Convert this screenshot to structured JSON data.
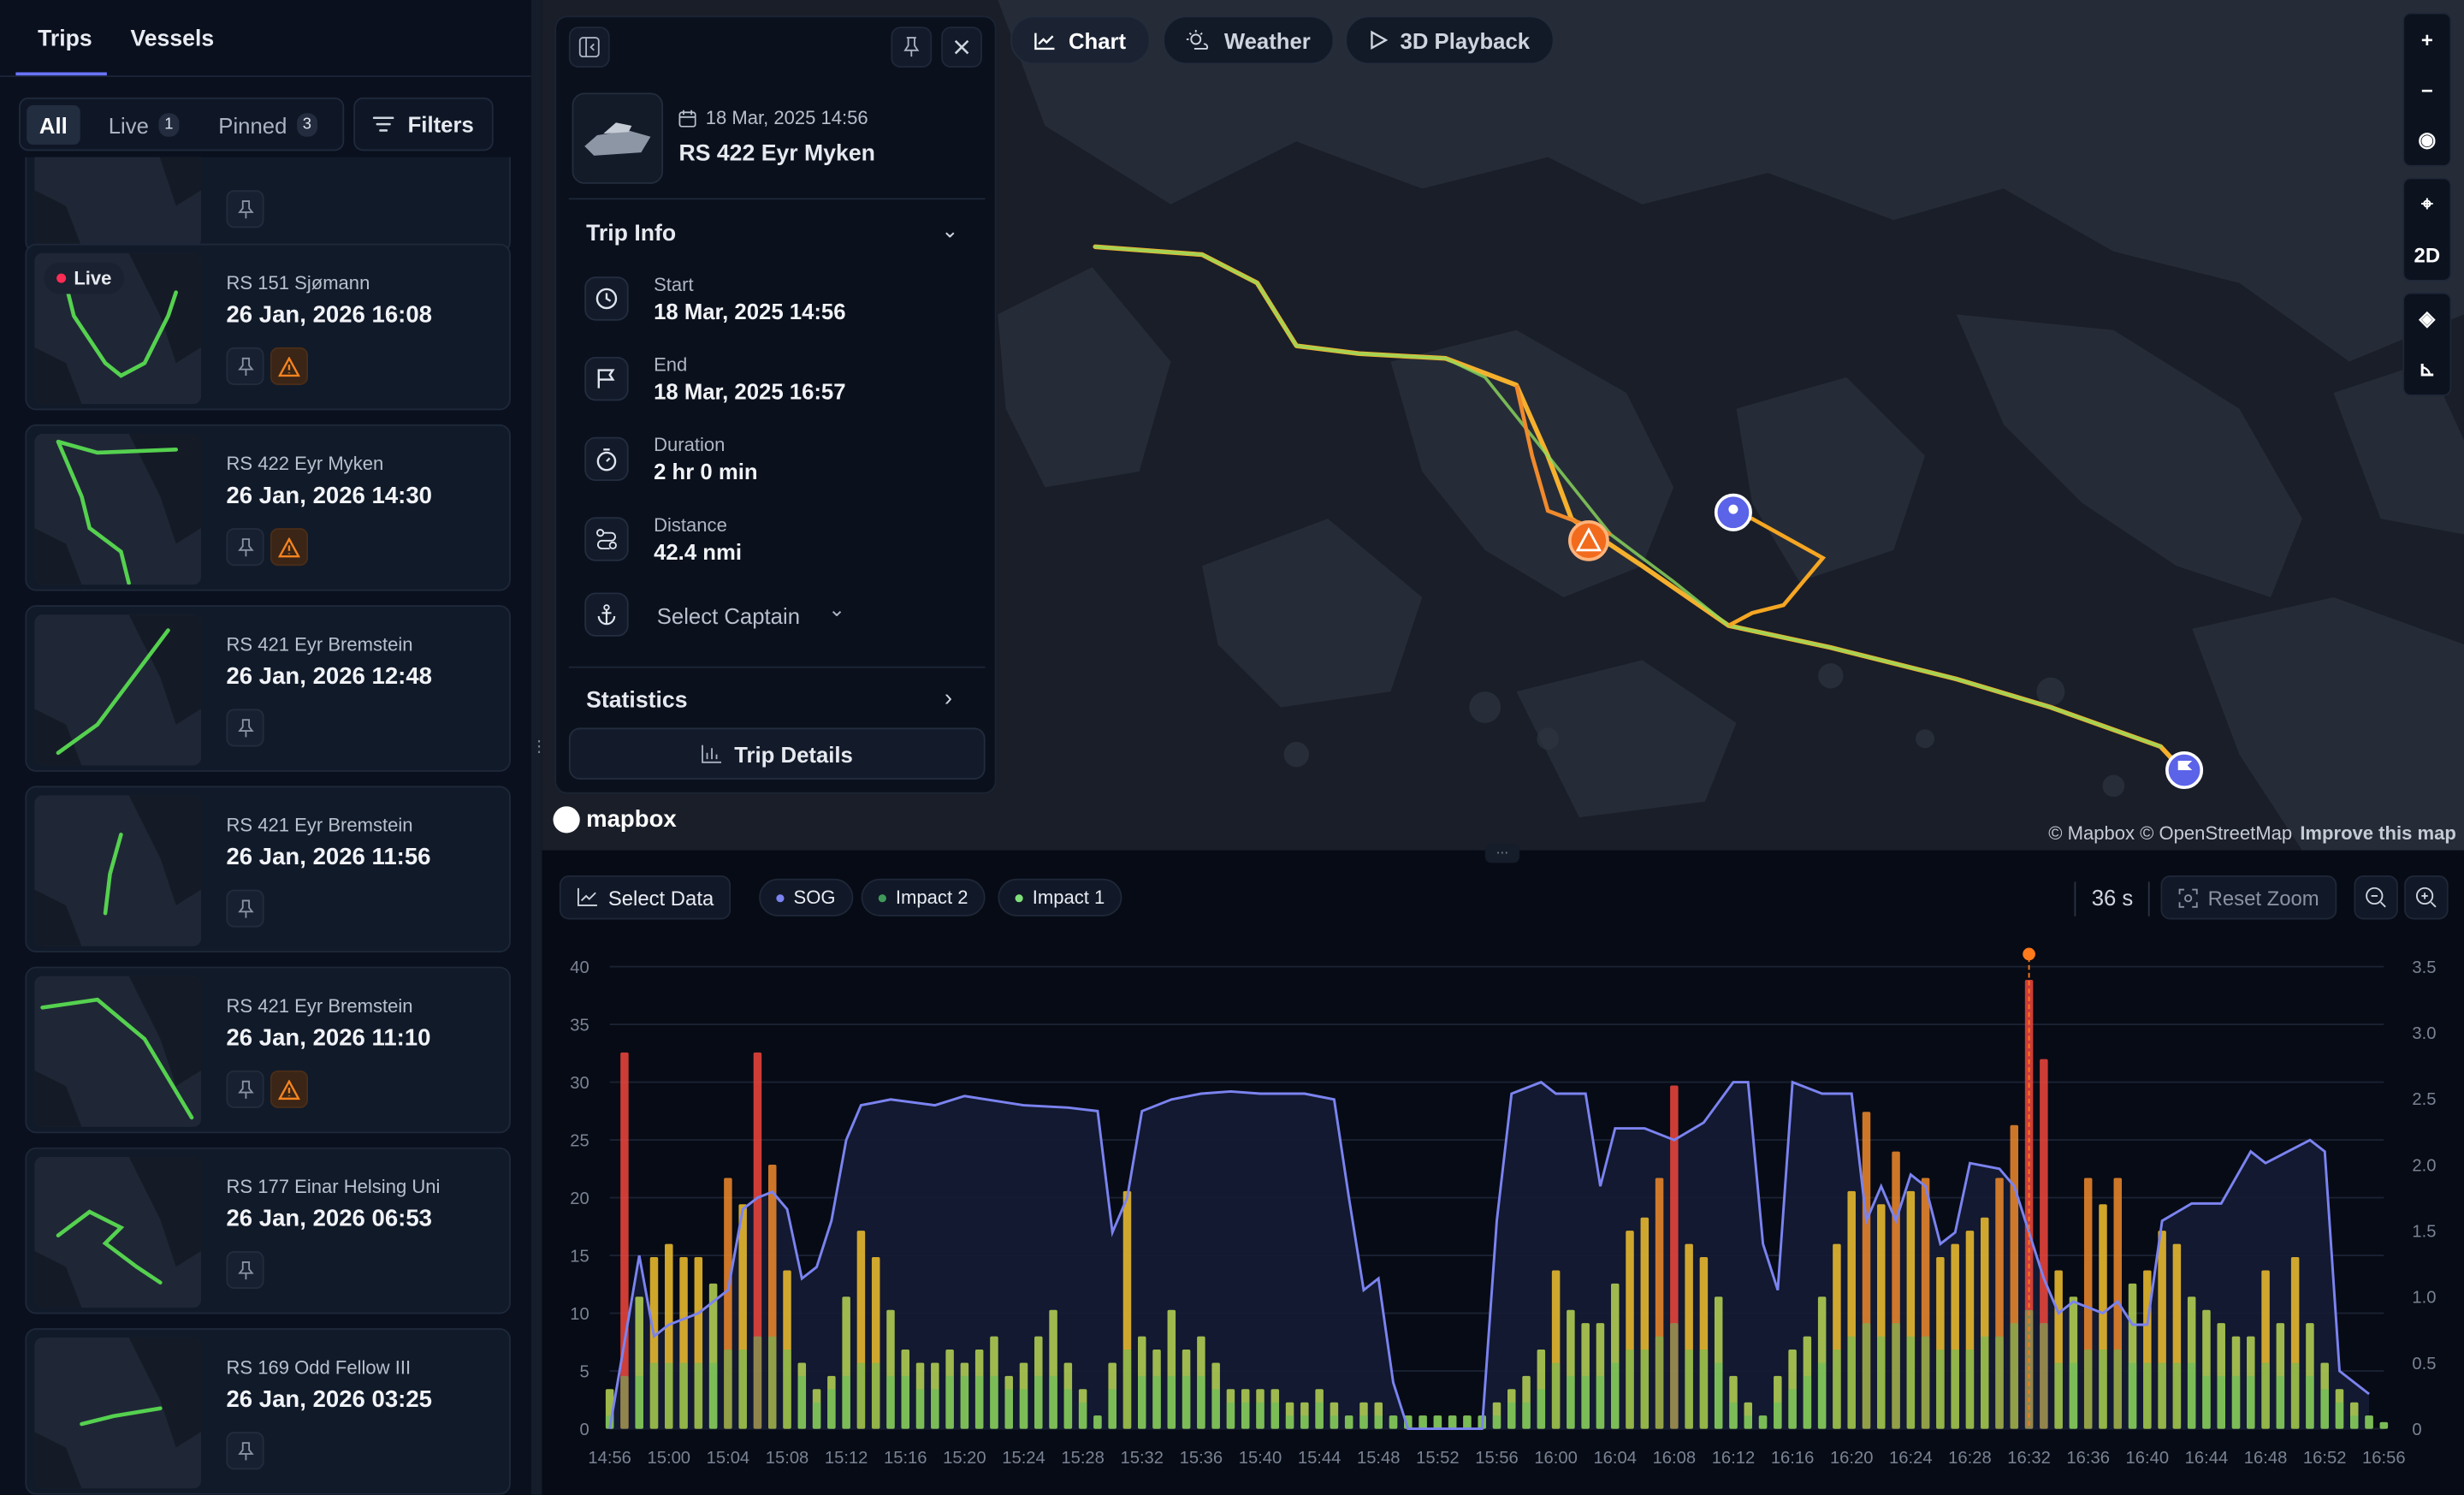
{
  "sidebar": {
    "tabs": [
      {
        "label": "Trips",
        "active": true
      },
      {
        "label": "Vessels",
        "active": false
      }
    ],
    "segments": [
      {
        "label": "All",
        "active": true
      },
      {
        "label": "Live",
        "count": "1"
      },
      {
        "label": "Pinned",
        "count": "3"
      }
    ],
    "filters_label": "Filters",
    "trips": [
      {
        "name": "",
        "date": "",
        "live": false,
        "warning": false,
        "partial": true
      },
      {
        "name": "RS 151 Sjømann",
        "date": "26 Jan, 2026 16:08",
        "live": true,
        "live_label": "Live",
        "warning": true
      },
      {
        "name": "RS 422 Eyr Myken",
        "date": "26 Jan, 2026 14:30",
        "live": false,
        "warning": true
      },
      {
        "name": "RS 421 Eyr Bremstein",
        "date": "26 Jan, 2026 12:48",
        "live": false,
        "warning": false
      },
      {
        "name": "RS 421 Eyr Bremstein",
        "date": "26 Jan, 2026 11:56",
        "live": false,
        "warning": false
      },
      {
        "name": "RS 421 Eyr Bremstein",
        "date": "26 Jan, 2026 11:10",
        "live": false,
        "warning": true
      },
      {
        "name": "RS 177 Einar Helsing Uni",
        "date": "26 Jan, 2026 06:53",
        "live": false,
        "warning": false
      },
      {
        "name": "RS 169 Odd Fellow III",
        "date": "26 Jan, 2026 03:25",
        "live": false,
        "warning": false
      }
    ]
  },
  "trip_panel": {
    "date": "18 Mar, 2025 14:56",
    "vessel": "RS 422 Eyr Myken",
    "trip_info_title": "Trip Info",
    "start_label": "Start",
    "start_value": "18 Mar, 2025 14:56",
    "end_label": "End",
    "end_value": "18 Mar, 2025 16:57",
    "duration_label": "Duration",
    "duration_value": "2 hr 0 min",
    "distance_label": "Distance",
    "distance_value": "42.4 nmi",
    "captain_placeholder": "Select Captain",
    "statistics_title": "Statistics",
    "trip_details_label": "Trip Details"
  },
  "map": {
    "buttons": [
      {
        "label": "Chart",
        "active": true
      },
      {
        "label": "Weather"
      },
      {
        "label": "3D Playback"
      }
    ],
    "controls": [
      "+",
      "−",
      "eye",
      "locate",
      "2D",
      "layers",
      "chart"
    ],
    "control_2d": "2D",
    "logo": "mapbox",
    "attribution": "© Mapbox © OpenStreetMap",
    "improve_link": "Improve this map",
    "track_color_low": "#7ed957",
    "track_color_high": "#f5a623"
  },
  "chart_toolbar": {
    "select_data": "Select Data",
    "legend": [
      {
        "name": "SOG",
        "color": "#7b83f0"
      },
      {
        "name": "Impact 2",
        "color": "#3f9a5a"
      },
      {
        "name": "Impact 1",
        "color": "#7fe07a"
      }
    ],
    "interval": "36 s",
    "reset_zoom": "Reset Zoom"
  },
  "chart_data": {
    "type": "bar+line",
    "x_ticks": [
      "14:56",
      "15:00",
      "15:04",
      "15:08",
      "15:12",
      "15:16",
      "15:20",
      "15:24",
      "15:28",
      "15:32",
      "15:36",
      "15:40",
      "15:44",
      "15:48",
      "15:52",
      "15:56",
      "16:00",
      "16:04",
      "16:08",
      "16:12",
      "16:16",
      "16:20",
      "16:24",
      "16:28",
      "16:32",
      "16:36",
      "16:40",
      "16:44",
      "16:48",
      "16:52",
      "16:56"
    ],
    "x_range": [
      "14:56",
      "16:56"
    ],
    "y_left": {
      "range": [
        0,
        40
      ],
      "ticks": [
        0,
        5,
        10,
        15,
        20,
        25,
        30,
        35,
        40
      ]
    },
    "y_right": {
      "range": [
        0,
        3.5
      ],
      "ticks": [
        "0",
        "0.5",
        "1.0",
        "1.5",
        "2.0",
        "2.5",
        "3.0",
        "3.5"
      ]
    },
    "grid": true,
    "marker": {
      "time": "16:32",
      "color": "#ff7a1a"
    },
    "colors": {
      "sog": "#7b83f0",
      "impact_red": "#f0463c",
      "impact_orange": "#f08a2c",
      "impact_yellow": "#f2c12e",
      "impact_lime": "#b8d654",
      "impact1": "#5fbf5f"
    },
    "series": [
      {
        "name": "SOG",
        "axis": "left",
        "points": [
          [
            "14:56",
            0
          ],
          [
            "14:58",
            15
          ],
          [
            "14:59",
            8
          ],
          [
            "15:00",
            9
          ],
          [
            "15:02",
            10
          ],
          [
            "15:04",
            12
          ],
          [
            "15:05",
            19
          ],
          [
            "15:06",
            20
          ],
          [
            "15:07",
            20.5
          ],
          [
            "15:08",
            19
          ],
          [
            "15:09",
            13
          ],
          [
            "15:10",
            14
          ],
          [
            "15:11",
            18
          ],
          [
            "15:12",
            25
          ],
          [
            "15:13",
            28
          ],
          [
            "15:15",
            28.5
          ],
          [
            "15:18",
            28
          ],
          [
            "15:20",
            28.8
          ],
          [
            "15:24",
            28
          ],
          [
            "15:27",
            27.8
          ],
          [
            "15:29",
            27.5
          ],
          [
            "15:30",
            17
          ],
          [
            "15:31",
            20
          ],
          [
            "15:32",
            27.5
          ],
          [
            "15:34",
            28.5
          ],
          [
            "15:36",
            29
          ],
          [
            "15:38",
            29.2
          ],
          [
            "15:40",
            29
          ],
          [
            "15:43",
            29
          ],
          [
            "15:45",
            28.5
          ],
          [
            "15:46",
            20
          ],
          [
            "15:47",
            12
          ],
          [
            "15:48",
            13
          ],
          [
            "15:49",
            4
          ],
          [
            "15:50",
            0
          ],
          [
            "15:55",
            0
          ],
          [
            "15:56",
            18
          ],
          [
            "15:57",
            29
          ],
          [
            "15:59",
            30
          ],
          [
            "16:00",
            29
          ],
          [
            "16:02",
            29
          ],
          [
            "16:03",
            21
          ],
          [
            "16:04",
            26
          ],
          [
            "16:06",
            26
          ],
          [
            "16:08",
            25
          ],
          [
            "16:10",
            26.5
          ],
          [
            "16:12",
            30
          ],
          [
            "16:13",
            30
          ],
          [
            "16:14",
            16
          ],
          [
            "16:15",
            12
          ],
          [
            "16:16",
            30
          ],
          [
            "16:18",
            29
          ],
          [
            "16:20",
            29
          ],
          [
            "16:21",
            18
          ],
          [
            "16:22",
            21
          ],
          [
            "16:23",
            18
          ],
          [
            "16:24",
            22
          ],
          [
            "16:25",
            21
          ],
          [
            "16:26",
            16
          ],
          [
            "16:27",
            17
          ],
          [
            "16:28",
            23
          ],
          [
            "16:30",
            22.5
          ],
          [
            "16:31",
            21
          ],
          [
            "16:32",
            17
          ],
          [
            "16:33",
            13
          ],
          [
            "16:34",
            10
          ],
          [
            "16:35",
            11
          ],
          [
            "16:37",
            10
          ],
          [
            "16:38",
            11
          ],
          [
            "16:39",
            9
          ],
          [
            "16:40",
            9
          ],
          [
            "16:41",
            18
          ],
          [
            "16:43",
            19.5
          ],
          [
            "16:45",
            19.5
          ],
          [
            "16:47",
            24
          ],
          [
            "16:48",
            23
          ],
          [
            "16:51",
            25
          ],
          [
            "16:52",
            24
          ],
          [
            "16:53",
            5
          ],
          [
            "16:55",
            3
          ]
        ]
      },
      {
        "name": "Impact 2",
        "axis": "right",
        "start": "14:56",
        "step_min": 1,
        "values": [
          0.3,
          2.85,
          1.0,
          1.3,
          1.4,
          1.3,
          1.3,
          1.1,
          1.9,
          1.7,
          2.85,
          2.0,
          1.2,
          0.5,
          0.3,
          0.4,
          1.0,
          1.5,
          1.3,
          0.9,
          0.6,
          0.5,
          0.5,
          0.6,
          0.5,
          0.6,
          0.7,
          0.4,
          0.5,
          0.7,
          0.9,
          0.5,
          0.3,
          0.1,
          0.5,
          1.8,
          0.7,
          0.6,
          0.9,
          0.6,
          0.7,
          0.5,
          0.3,
          0.3,
          0.3,
          0.3,
          0.2,
          0.2,
          0.3,
          0.2,
          0.1,
          0.2,
          0.2,
          0.1,
          0.1,
          0.1,
          0.1,
          0.1,
          0.1,
          0.1,
          0.2,
          0.3,
          0.4,
          0.6,
          1.2,
          0.9,
          0.8,
          0.8,
          1.1,
          1.5,
          1.6,
          1.9,
          2.6,
          1.4,
          1.3,
          1.0,
          0.4,
          0.2,
          0.1,
          0.4,
          0.6,
          0.7,
          1.0,
          1.4,
          1.8,
          2.4,
          1.7,
          2.1,
          1.8,
          1.9,
          1.3,
          1.4,
          1.5,
          1.6,
          1.9,
          2.3,
          3.4,
          2.8,
          1.2,
          1.0,
          1.9,
          1.7,
          1.9,
          1.1,
          1.2,
          1.5,
          1.4,
          1.0,
          0.9,
          0.8,
          0.7,
          0.7,
          1.2,
          0.8,
          1.3,
          0.8,
          0.5,
          0.3,
          0.2,
          0.1,
          0.05
        ]
      },
      {
        "name": "Impact 1",
        "axis": "right",
        "start": "14:56",
        "step_min": 1,
        "values": [
          0.1,
          0.4,
          0.4,
          0.5,
          0.5,
          0.5,
          0.5,
          0.5,
          0.6,
          0.6,
          0.7,
          0.7,
          0.6,
          0.4,
          0.2,
          0.3,
          0.4,
          0.5,
          0.5,
          0.4,
          0.4,
          0.3,
          0.3,
          0.4,
          0.4,
          0.4,
          0.4,
          0.3,
          0.3,
          0.4,
          0.4,
          0.3,
          0.2,
          0.1,
          0.3,
          0.6,
          0.4,
          0.4,
          0.4,
          0.4,
          0.4,
          0.3,
          0.2,
          0.2,
          0.2,
          0.2,
          0.1,
          0.1,
          0.2,
          0.1,
          0.1,
          0.1,
          0.1,
          0.1,
          0.1,
          0.1,
          0.1,
          0.1,
          0.1,
          0.1,
          0.1,
          0.2,
          0.2,
          0.3,
          0.5,
          0.4,
          0.4,
          0.4,
          0.5,
          0.6,
          0.6,
          0.7,
          0.8,
          0.6,
          0.6,
          0.5,
          0.2,
          0.1,
          0.1,
          0.2,
          0.3,
          0.4,
          0.5,
          0.6,
          0.7,
          0.8,
          0.7,
          0.8,
          0.7,
          0.7,
          0.6,
          0.6,
          0.6,
          0.7,
          0.7,
          0.8,
          0.9,
          0.8,
          0.5,
          0.5,
          0.6,
          0.6,
          0.6,
          0.5,
          0.5,
          0.5,
          0.5,
          0.5,
          0.4,
          0.4,
          0.4,
          0.4,
          0.5,
          0.4,
          0.5,
          0.4,
          0.3,
          0.2,
          0.1,
          0.1,
          0.05
        ]
      }
    ]
  }
}
